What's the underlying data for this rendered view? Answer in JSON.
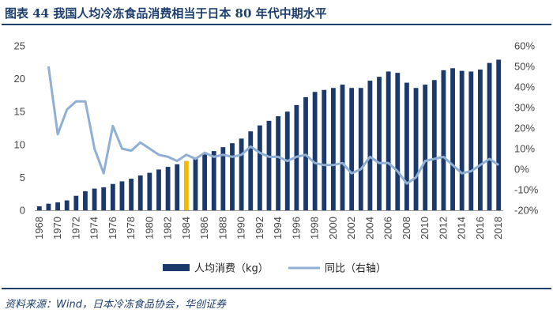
{
  "title": {
    "text": "图表 44   我国人均冷冻食品消费相当于日本 80 年代中期水平"
  },
  "source": {
    "text": "资料来源：Wind，日本冷冻食品协会，华创证券"
  },
  "colors": {
    "bar": "#1b3a6b",
    "bar_highlight": "#f5b800",
    "line": "#8fb0d4",
    "title": "#1d3f6e"
  },
  "chart_data": {
    "type": "bar+line",
    "x": [
      1968,
      1969,
      1970,
      1971,
      1972,
      1973,
      1974,
      1975,
      1976,
      1977,
      1978,
      1979,
      1980,
      1981,
      1982,
      1983,
      1984,
      1985,
      1986,
      1987,
      1988,
      1989,
      1990,
      1991,
      1992,
      1993,
      1994,
      1995,
      1996,
      1997,
      1998,
      1999,
      2000,
      2001,
      2002,
      2003,
      2004,
      2005,
      2006,
      2007,
      2008,
      2009,
      2010,
      2011,
      2012,
      2013,
      2014,
      2015,
      2016,
      2017,
      2018
    ],
    "x_tick_labels": [
      "1968",
      "1970",
      "1972",
      "1974",
      "1976",
      "1978",
      "1980",
      "1982",
      "1984",
      "1986",
      "1988",
      "1990",
      "1992",
      "1994",
      "1996",
      "1998",
      "2000",
      "2002",
      "2004",
      "2006",
      "2008",
      "2010",
      "2012",
      "2014",
      "2016",
      "2018"
    ],
    "highlight_x": 1984,
    "series": [
      {
        "name": "人均消费（kg）",
        "type": "bar",
        "axis": "left",
        "values": [
          0.6,
          1.0,
          1.2,
          1.5,
          2.2,
          2.9,
          3.3,
          3.5,
          4.0,
          4.4,
          4.8,
          5.3,
          5.7,
          6.2,
          6.6,
          7.0,
          7.5,
          8.0,
          8.5,
          9.0,
          9.6,
          10.2,
          10.9,
          12.0,
          12.9,
          13.6,
          14.3,
          15.0,
          16.0,
          17.2,
          18.0,
          18.3,
          18.6,
          19.1,
          18.6,
          18.6,
          19.7,
          20.3,
          21.1,
          20.9,
          19.4,
          18.6,
          19.1,
          19.8,
          21.3,
          21.6,
          21.2,
          21.1,
          21.4,
          22.4,
          22.9
        ]
      },
      {
        "name": "同比（右轴）",
        "type": "line",
        "axis": "right",
        "values": [
          null,
          50,
          17,
          29,
          33,
          33,
          10,
          -2,
          21,
          10,
          9,
          13,
          10,
          7,
          6,
          4,
          7,
          5,
          8,
          6,
          7,
          6,
          7,
          11,
          8,
          6,
          6,
          4,
          6,
          7,
          3,
          2,
          2,
          3,
          -2,
          0,
          6,
          3,
          3,
          -1,
          -7,
          -4,
          4,
          5,
          6,
          2,
          -2,
          -1,
          2,
          5,
          2
        ]
      }
    ],
    "y_left": {
      "min": 0,
      "max": 25,
      "ticks": [
        0,
        5,
        10,
        15,
        20,
        25
      ]
    },
    "y_right": {
      "min": -20,
      "max": 60,
      "ticks": [
        -20,
        -10,
        0,
        10,
        20,
        30,
        40,
        50,
        60
      ],
      "tick_labels": [
        "-20%",
        "-10%",
        "0%",
        "10%",
        "20%",
        "30%",
        "40%",
        "50%",
        "60%"
      ]
    },
    "grid": false,
    "legend_position": "bottom"
  }
}
